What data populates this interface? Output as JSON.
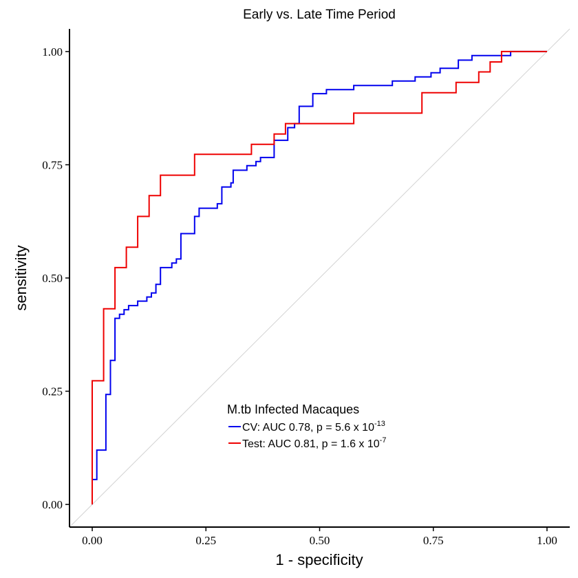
{
  "chart_data": {
    "type": "line",
    "title": "Early vs. Late Time Period",
    "xlabel": "1 - specificity",
    "ylabel": "sensitivity",
    "xlim": [
      -0.05,
      1.05
    ],
    "ylim": [
      -0.05,
      1.05
    ],
    "x_ticks": [
      "0.00",
      "0.25",
      "0.50",
      "0.75",
      "1.00"
    ],
    "y_ticks": [
      "0.00",
      "0.25",
      "0.50",
      "0.75",
      "1.00"
    ],
    "grid": false,
    "reference_line": {
      "from": [
        -0.05,
        -0.05
      ],
      "to": [
        1.05,
        1.05
      ],
      "color": "#d3d3d3"
    },
    "legend": {
      "title": "M.tb Infected Macaques",
      "position": "bottom-center",
      "entries": [
        {
          "label": "CV: AUC 0.78, p = 5.6 x 10",
          "exponent": "-13",
          "color": "#0000ee"
        },
        {
          "label": "Test: AUC 0.81, p = 1.6 x 10",
          "exponent": "-7",
          "color": "#ee0000"
        }
      ]
    },
    "series": [
      {
        "name": "CV: AUC 0.78, p = 5.6 x 10-13",
        "color": "#0000ee",
        "points": [
          [
            0.0,
            0.0
          ],
          [
            0.0,
            0.055
          ],
          [
            0.01,
            0.055
          ],
          [
            0.01,
            0.12
          ],
          [
            0.03,
            0.12
          ],
          [
            0.03,
            0.243
          ],
          [
            0.04,
            0.243
          ],
          [
            0.04,
            0.318
          ],
          [
            0.05,
            0.318
          ],
          [
            0.05,
            0.411
          ],
          [
            0.06,
            0.411
          ],
          [
            0.06,
            0.42
          ],
          [
            0.07,
            0.42
          ],
          [
            0.07,
            0.43
          ],
          [
            0.08,
            0.43
          ],
          [
            0.08,
            0.439
          ],
          [
            0.1,
            0.439
          ],
          [
            0.1,
            0.449
          ],
          [
            0.12,
            0.449
          ],
          [
            0.12,
            0.458
          ],
          [
            0.13,
            0.458
          ],
          [
            0.13,
            0.467
          ],
          [
            0.14,
            0.467
          ],
          [
            0.14,
            0.486
          ],
          [
            0.15,
            0.486
          ],
          [
            0.15,
            0.523
          ],
          [
            0.175,
            0.523
          ],
          [
            0.175,
            0.533
          ],
          [
            0.185,
            0.533
          ],
          [
            0.185,
            0.542
          ],
          [
            0.195,
            0.542
          ],
          [
            0.195,
            0.598
          ],
          [
            0.225,
            0.598
          ],
          [
            0.225,
            0.636
          ],
          [
            0.235,
            0.636
          ],
          [
            0.235,
            0.654
          ],
          [
            0.275,
            0.654
          ],
          [
            0.275,
            0.664
          ],
          [
            0.285,
            0.664
          ],
          [
            0.285,
            0.701
          ],
          [
            0.305,
            0.701
          ],
          [
            0.305,
            0.71
          ],
          [
            0.31,
            0.71
          ],
          [
            0.31,
            0.738
          ],
          [
            0.34,
            0.738
          ],
          [
            0.34,
            0.748
          ],
          [
            0.36,
            0.748
          ],
          [
            0.36,
            0.757
          ],
          [
            0.37,
            0.757
          ],
          [
            0.37,
            0.766
          ],
          [
            0.4,
            0.766
          ],
          [
            0.4,
            0.804
          ],
          [
            0.43,
            0.804
          ],
          [
            0.43,
            0.832
          ],
          [
            0.445,
            0.832
          ],
          [
            0.445,
            0.841
          ],
          [
            0.455,
            0.841
          ],
          [
            0.455,
            0.879
          ],
          [
            0.485,
            0.879
          ],
          [
            0.485,
            0.907
          ],
          [
            0.515,
            0.907
          ],
          [
            0.515,
            0.916
          ],
          [
            0.575,
            0.916
          ],
          [
            0.575,
            0.925
          ],
          [
            0.66,
            0.925
          ],
          [
            0.66,
            0.935
          ],
          [
            0.71,
            0.935
          ],
          [
            0.71,
            0.944
          ],
          [
            0.745,
            0.944
          ],
          [
            0.745,
            0.953
          ],
          [
            0.765,
            0.953
          ],
          [
            0.765,
            0.963
          ],
          [
            0.805,
            0.963
          ],
          [
            0.805,
            0.981
          ],
          [
            0.835,
            0.981
          ],
          [
            0.835,
            0.991
          ],
          [
            0.92,
            0.991
          ],
          [
            0.92,
            1.0
          ],
          [
            1.0,
            1.0
          ]
        ]
      },
      {
        "name": "Test: AUC 0.81, p = 1.6 x 10-7",
        "color": "#ee0000",
        "points": [
          [
            0.0,
            0.0
          ],
          [
            0.0,
            0.273
          ],
          [
            0.025,
            0.273
          ],
          [
            0.025,
            0.432
          ],
          [
            0.05,
            0.432
          ],
          [
            0.05,
            0.523
          ],
          [
            0.075,
            0.523
          ],
          [
            0.075,
            0.568
          ],
          [
            0.1,
            0.568
          ],
          [
            0.1,
            0.636
          ],
          [
            0.125,
            0.636
          ],
          [
            0.125,
            0.682
          ],
          [
            0.15,
            0.682
          ],
          [
            0.15,
            0.727
          ],
          [
            0.225,
            0.727
          ],
          [
            0.225,
            0.773
          ],
          [
            0.35,
            0.773
          ],
          [
            0.35,
            0.795
          ],
          [
            0.4,
            0.795
          ],
          [
            0.4,
            0.818
          ],
          [
            0.425,
            0.818
          ],
          [
            0.425,
            0.841
          ],
          [
            0.575,
            0.841
          ],
          [
            0.575,
            0.864
          ],
          [
            0.725,
            0.864
          ],
          [
            0.725,
            0.909
          ],
          [
            0.8,
            0.909
          ],
          [
            0.8,
            0.932
          ],
          [
            0.85,
            0.932
          ],
          [
            0.85,
            0.955
          ],
          [
            0.875,
            0.955
          ],
          [
            0.875,
            0.977
          ],
          [
            0.9,
            0.977
          ],
          [
            0.9,
            1.0
          ],
          [
            1.0,
            1.0
          ]
        ]
      }
    ]
  }
}
